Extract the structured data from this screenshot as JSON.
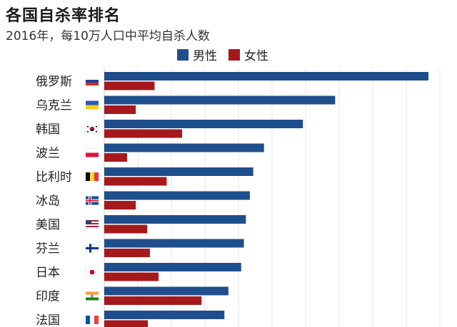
{
  "title": "各国自杀率排名",
  "subtitle": "2016年，每10万人口中平均自杀人数",
  "colors": {
    "male": "#1f4e8c",
    "female": "#a5191d",
    "grid": "#e6e6e6"
  },
  "chart_data": {
    "type": "bar",
    "orientation": "horizontal",
    "title": "各国自杀率排名",
    "subtitle": "2016年，每10万人口中平均自杀人数",
    "categories": [
      "俄罗斯",
      "乌克兰",
      "韩国",
      "波兰",
      "比利时",
      "冰岛",
      "美国",
      "芬兰",
      "日本",
      "印度",
      "法国"
    ],
    "flags": [
      "russia-flag-icon",
      "ukraine-flag-icon",
      "korea-flag-icon",
      "poland-flag-icon",
      "belgium-flag-icon",
      "iceland-flag-icon",
      "usa-flag-icon",
      "finland-flag-icon",
      "japan-flag-icon",
      "india-flag-icon",
      "france-flag-icon"
    ],
    "series": [
      {
        "name": "男性",
        "values": [
          48.3,
          34.4,
          29.6,
          23.8,
          22.2,
          21.7,
          21.1,
          20.8,
          20.4,
          18.5,
          17.9
        ]
      },
      {
        "name": "女性",
        "values": [
          7.5,
          4.7,
          11.6,
          3.4,
          9.3,
          4.7,
          6.4,
          6.8,
          8.1,
          14.5,
          6.5
        ]
      }
    ],
    "xlim": [
      0,
      50
    ],
    "grid": true,
    "legend_position": "top"
  }
}
